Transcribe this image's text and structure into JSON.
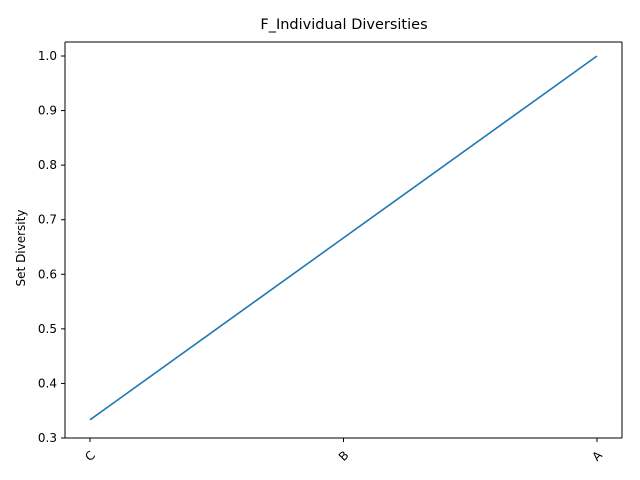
{
  "chart_data": {
    "type": "line",
    "title": "F_Individual Diversities",
    "xlabel": "",
    "ylabel": "Set Diversity",
    "categories": [
      "C",
      "B",
      "A"
    ],
    "series": [
      {
        "values": [
          0.3333,
          0.6667,
          1.0
        ],
        "color": "#1f77b4"
      }
    ],
    "ylim": [
      0.3,
      1.0
    ],
    "yticks": [
      0.3,
      0.4,
      0.5,
      0.6,
      0.7,
      0.8,
      0.9,
      1.0
    ],
    "ytick_labels": [
      "0.3",
      "0.4",
      "0.5",
      "0.6",
      "0.7",
      "0.8",
      "0.9",
      "1.0"
    ],
    "x_tick_rotation": 45,
    "grid": false,
    "legend": "none"
  }
}
